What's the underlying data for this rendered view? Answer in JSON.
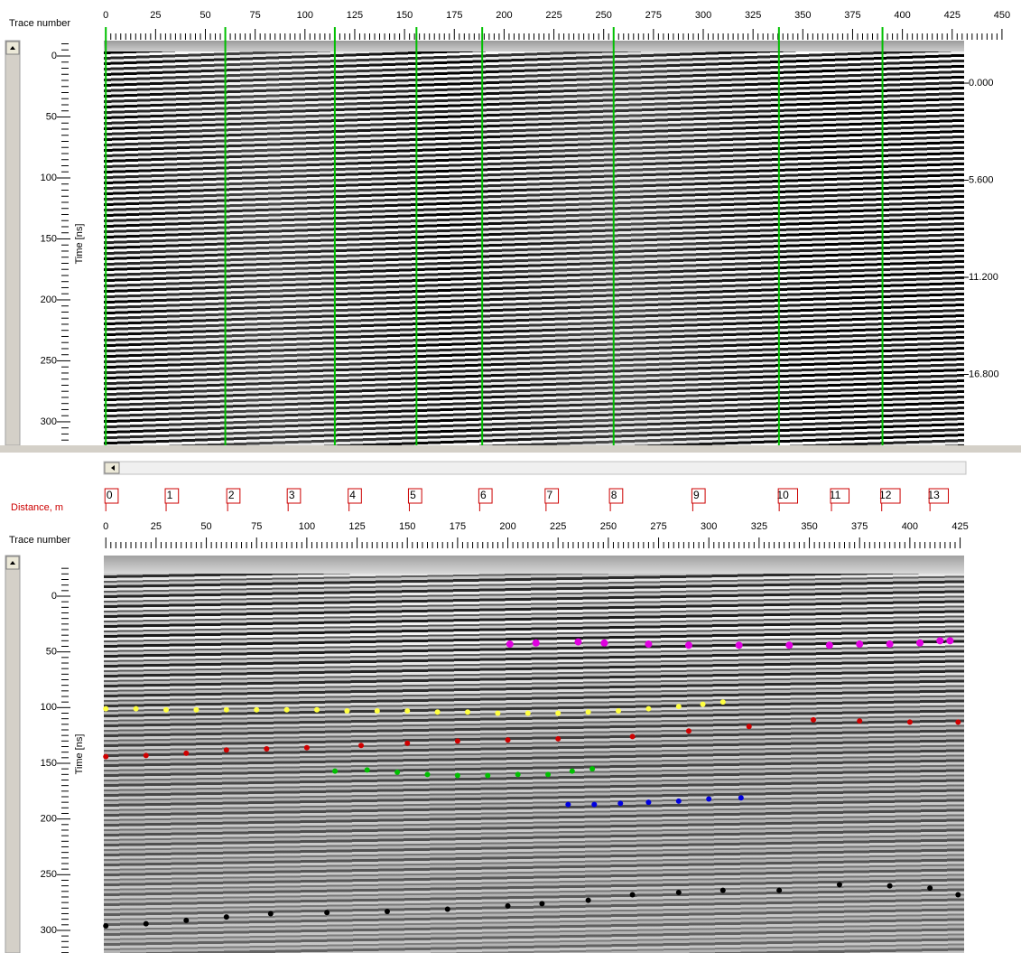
{
  "top_panel": {
    "x_axis_label": "Trace number",
    "xlim": [
      -1,
      431
    ],
    "xticks": [
      0,
      25,
      50,
      75,
      100,
      125,
      150,
      175,
      200,
      225,
      250,
      275,
      300,
      325,
      350,
      375,
      400,
      425,
      450
    ],
    "y_axis_label": "Time [ns]",
    "ylim": [
      -12.6,
      319.3
    ],
    "yticks": [
      0,
      50,
      100,
      150,
      200,
      250,
      300
    ],
    "y2lim": [
      -2.45,
      20.89
    ],
    "y2ticks": [
      {
        "value": 0,
        "label": "0.000"
      },
      {
        "value": 5.6,
        "label": "5.600"
      },
      {
        "value": 11.2,
        "label": "11.200"
      },
      {
        "value": 16.8,
        "label": "16.800"
      }
    ],
    "marker_traces": [
      0,
      60,
      115,
      156,
      189,
      255,
      338,
      390
    ]
  },
  "bottom_panel": {
    "distance_label": "Distance, m",
    "distance_marks": [
      {
        "value": 0,
        "trace": 0
      },
      {
        "value": 1,
        "trace": 30
      },
      {
        "value": 2,
        "trace": 60.6
      },
      {
        "value": 3,
        "trace": 90.7
      },
      {
        "value": 4,
        "trace": 121
      },
      {
        "value": 5,
        "trace": 151
      },
      {
        "value": 6,
        "trace": 186
      },
      {
        "value": 7,
        "trace": 219
      },
      {
        "value": 8,
        "trace": 251
      },
      {
        "value": 9,
        "trace": 292
      },
      {
        "value": 10,
        "trace": 335
      },
      {
        "value": 11,
        "trace": 361
      },
      {
        "value": 12,
        "trace": 386
      },
      {
        "value": 13,
        "trace": 410
      }
    ],
    "x_axis_label": "Trace number",
    "xlim": [
      -1,
      427
    ],
    "xticks": [
      0,
      25,
      50,
      75,
      100,
      125,
      150,
      175,
      200,
      225,
      250,
      275,
      300,
      325,
      350,
      375,
      400,
      425
    ],
    "y_axis_label": "Time [ns]",
    "ylim": [
      -36.5,
      320.3
    ],
    "yticks": [
      0,
      50,
      100,
      150,
      200,
      250,
      300
    ],
    "horizons": [
      {
        "color": "#e000e0",
        "traces": [
          201,
          214,
          235,
          248,
          270,
          290,
          315,
          340,
          360,
          375,
          390,
          405,
          415,
          420
        ],
        "times": [
          43,
          42,
          41,
          42,
          43,
          44,
          44,
          44,
          44,
          43,
          43,
          42,
          40,
          40
        ]
      },
      {
        "color": "#ffff40",
        "traces": [
          0,
          15,
          30,
          45,
          60,
          75,
          90,
          105,
          120,
          135,
          150,
          165,
          180,
          195,
          210,
          225,
          240,
          255,
          270,
          285,
          297,
          307
        ],
        "times": [
          101,
          101,
          102,
          102,
          102,
          102,
          102,
          102,
          103,
          103,
          103,
          104,
          104,
          105,
          105,
          105,
          104,
          103,
          101,
          99,
          97,
          95
        ]
      },
      {
        "color": "#d00000",
        "traces": [
          0,
          20,
          40,
          60,
          80,
          100,
          127,
          150,
          175,
          200,
          225,
          262,
          290,
          320,
          352,
          375,
          400,
          424
        ],
        "times": [
          144,
          143,
          141,
          138,
          137,
          136,
          134,
          132,
          130,
          129,
          128,
          126,
          121,
          117,
          111,
          112,
          113,
          113
        ]
      },
      {
        "color": "#00c000",
        "traces": [
          114,
          130,
          145,
          160,
          175,
          190,
          205,
          220,
          232,
          242
        ],
        "times": [
          157,
          156,
          158,
          160,
          161,
          161,
          160,
          160,
          157,
          155
        ]
      },
      {
        "color": "#0000e0",
        "traces": [
          230,
          243,
          256,
          270,
          285,
          300,
          316
        ],
        "times": [
          187,
          187,
          186,
          185,
          184,
          182,
          181
        ]
      },
      {
        "color": "#000000",
        "traces": [
          0,
          20,
          40,
          60,
          82,
          110,
          140,
          170,
          200,
          217,
          240,
          262,
          285,
          307,
          335,
          365,
          390,
          410,
          424
        ],
        "times": [
          296,
          294,
          291,
          288,
          285,
          284,
          283,
          281,
          278,
          276,
          273,
          268,
          266,
          264,
          264,
          259,
          260,
          262,
          268
        ]
      }
    ]
  }
}
